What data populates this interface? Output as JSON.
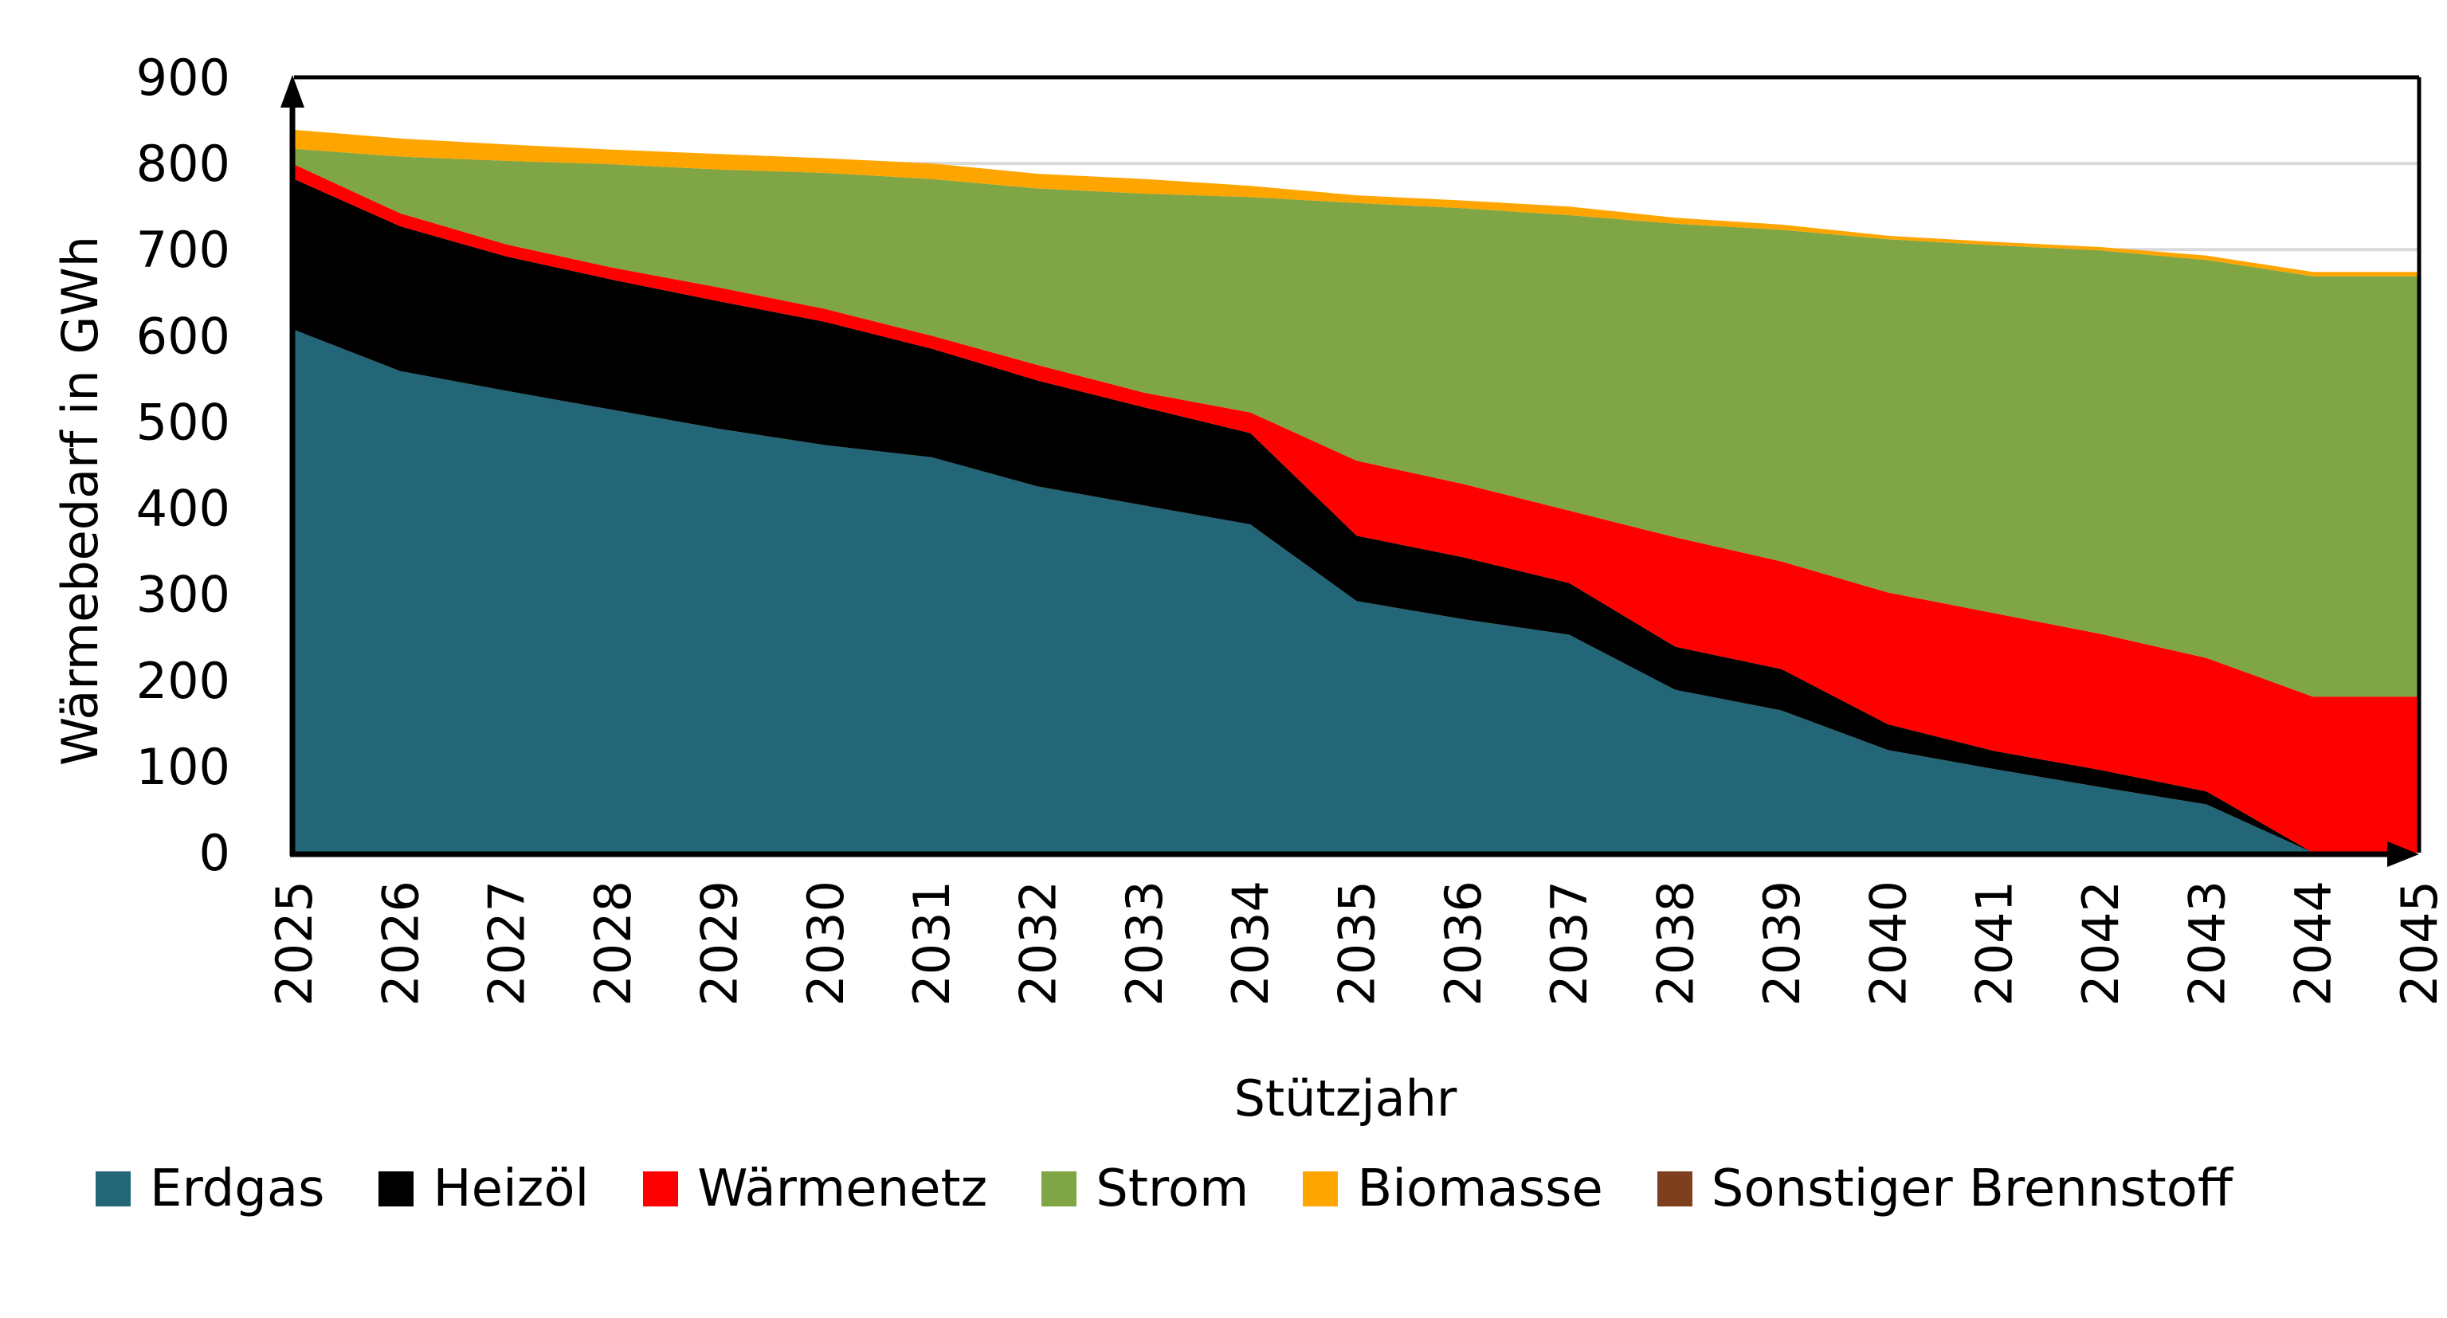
{
  "chart_data": {
    "type": "area",
    "stacked": true,
    "title": "",
    "xlabel": "Stützjahr",
    "ylabel": "Wärmebedarf in GWh",
    "ylim": [
      0,
      900
    ],
    "yticks": [
      0,
      100,
      200,
      300,
      400,
      500,
      600,
      700,
      800,
      900
    ],
    "grid": "horizontal gridlines (light grey)",
    "legend_position": "bottom",
    "categories": [
      "2025",
      "2026",
      "2027",
      "2028",
      "2029",
      "2030",
      "2031",
      "2032",
      "2033",
      "2034",
      "2035",
      "2036",
      "2037",
      "2038",
      "2039",
      "2040",
      "2041",
      "2042",
      "2043",
      "2044",
      "2045"
    ],
    "series": [
      {
        "name": "Erdgas",
        "color": "#236677",
        "values": [
          607,
          559,
          536,
          514,
          492,
          473,
          459,
          425,
          403,
          381,
          292,
          271,
          253,
          189,
          165,
          119,
          97,
          76,
          56,
          0,
          0
        ]
      },
      {
        "name": "Heizöl",
        "color": "#000000",
        "values": [
          175,
          168,
          156,
          151,
          148,
          143,
          126,
          123,
          114,
          106,
          76,
          72,
          60,
          50,
          48,
          30,
          21,
          20,
          15,
          0,
          0
        ]
      },
      {
        "name": "Wärmenetz",
        "color": "#ff0000",
        "values": [
          17,
          15,
          14,
          14,
          16,
          15,
          15,
          18,
          17,
          24,
          87,
          85,
          84,
          127,
          125,
          153,
          160,
          158,
          155,
          181,
          181
        ]
      },
      {
        "name": "Strom",
        "color": "#7fa544",
        "values": [
          18,
          66,
          97,
          120,
          137,
          158,
          182,
          205,
          231,
          250,
          299,
          320,
          343,
          364,
          385,
          410,
          427,
          445,
          462,
          488,
          488
        ]
      },
      {
        "name": "Biomasse",
        "color": "#ffa500",
        "values": [
          22,
          21,
          19,
          17,
          18,
          17,
          18,
          17,
          17,
          13,
          9,
          9,
          10,
          7,
          6,
          4,
          4,
          4,
          5,
          5,
          5
        ]
      },
      {
        "name": "Sonstiger Brennstoff",
        "color": "#7e3f1e",
        "values": [
          0,
          0,
          0,
          0,
          0,
          0,
          0,
          0,
          0,
          0,
          0,
          0,
          0,
          0,
          0,
          0,
          0,
          0,
          0,
          0,
          0
        ]
      }
    ]
  }
}
